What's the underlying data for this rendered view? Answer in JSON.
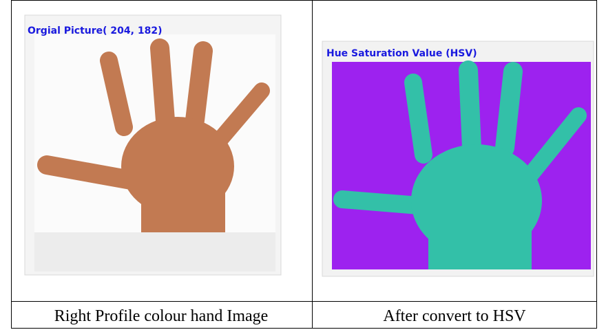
{
  "images": [
    {
      "label": "Orgial Picture( 204, 182)",
      "caption": "Right Profile colour hand Image"
    },
    {
      "label": "Hue Saturation Value (HSV)",
      "caption": "After convert to HSV"
    }
  ]
}
